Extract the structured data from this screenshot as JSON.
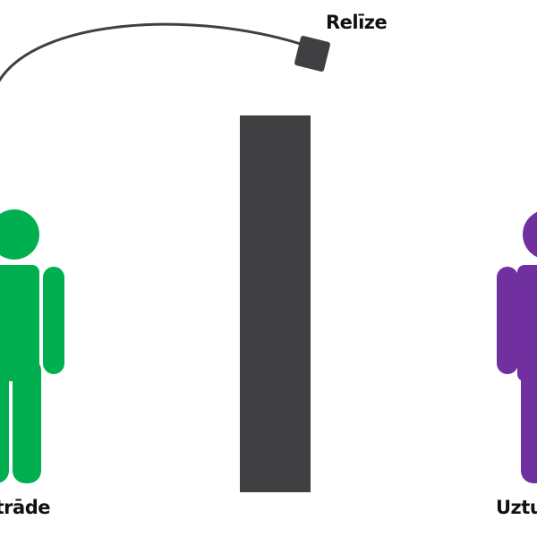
{
  "labels": {
    "release": "Relīze",
    "development": "Izstrāde",
    "operations": "Uzturēšana"
  },
  "colors": {
    "development_figure": "#00b050",
    "operations_figure": "#7030a0",
    "wall": "#404043",
    "arc": "#404043",
    "package": "#404043",
    "label_text": "#111111"
  }
}
